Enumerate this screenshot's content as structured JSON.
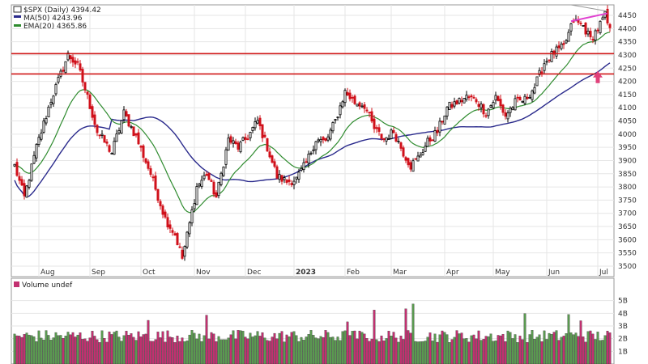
{
  "chart_data": [
    {
      "type": "candlestick",
      "legend": [
        {
          "label": "$SPX (Daily) 4394.42",
          "color": "#000000"
        },
        {
          "label": "MA(50) 4243.96",
          "color": "#2a2a8c"
        },
        {
          "label": "EMA(20) 4365.86",
          "color": "#2e8b2e"
        }
      ],
      "colors": {
        "up": "#000000",
        "down": "#d0101a",
        "ma50": "#2a2a8c",
        "ema20": "#2e8b2e",
        "support": "#d01818",
        "trendline": "#e040d0",
        "arrow": "#e0407a"
      },
      "ylim": [
        3460,
        4490
      ],
      "yticks": [
        3500,
        3550,
        3600,
        3650,
        3700,
        3750,
        3800,
        3850,
        3900,
        3950,
        4000,
        4050,
        4100,
        4150,
        4200,
        4250,
        4300,
        4350,
        4400,
        4450
      ],
      "x_labels": [
        "Aug",
        "Sep",
        "Oct",
        "Nov",
        "Dec",
        "2023",
        "Feb",
        "Mar",
        "Apr",
        "May",
        "Jun",
        "Jul"
      ],
      "anchors": [
        [
          0,
          3880
        ],
        [
          4,
          3760
        ],
        [
          9,
          3950
        ],
        [
          15,
          4130
        ],
        [
          22,
          4300
        ],
        [
          26,
          4260
        ],
        [
          30,
          4140
        ],
        [
          34,
          4010
        ],
        [
          40,
          3930
        ],
        [
          45,
          4080
        ],
        [
          50,
          3990
        ],
        [
          56,
          3850
        ],
        [
          62,
          3680
        ],
        [
          66,
          3620
        ],
        [
          69,
          3530
        ],
        [
          72,
          3660
        ],
        [
          75,
          3800
        ],
        [
          79,
          3850
        ],
        [
          83,
          3760
        ],
        [
          88,
          3980
        ],
        [
          92,
          3950
        ],
        [
          96,
          3990
        ],
        [
          100,
          4050
        ],
        [
          104,
          3950
        ],
        [
          108,
          3840
        ],
        [
          112,
          3820
        ],
        [
          116,
          3830
        ],
        [
          120,
          3890
        ],
        [
          124,
          3980
        ],
        [
          128,
          3970
        ],
        [
          132,
          4050
        ],
        [
          136,
          4160
        ],
        [
          140,
          4120
        ],
        [
          144,
          4110
        ],
        [
          148,
          4020
        ],
        [
          152,
          3980
        ],
        [
          156,
          4010
        ],
        [
          160,
          3930
        ],
        [
          163,
          3880
        ],
        [
          166,
          3910
        ],
        [
          170,
          3970
        ],
        [
          174,
          4010
        ],
        [
          178,
          4100
        ],
        [
          182,
          4120
        ],
        [
          186,
          4140
        ],
        [
          190,
          4130
        ],
        [
          194,
          4080
        ],
        [
          198,
          4140
        ],
        [
          202,
          4070
        ],
        [
          206,
          4120
        ],
        [
          210,
          4130
        ],
        [
          214,
          4180
        ],
        [
          218,
          4270
        ],
        [
          222,
          4310
        ],
        [
          226,
          4330
        ],
        [
          230,
          4430
        ],
        [
          234,
          4410
        ],
        [
          237,
          4360
        ],
        [
          240,
          4400
        ],
        [
          243,
          4450
        ],
        [
          245,
          4390
        ]
      ],
      "horizontal_lines": [
        {
          "price": 4305,
          "label": ""
        },
        {
          "price": 4228,
          "label": ""
        }
      ],
      "volume_panel": {
        "title": "Volume undef",
        "ylim": [
          0,
          6
        ],
        "yticks": [
          {
            "v": 1,
            "label": "1B"
          },
          {
            "v": 2,
            "label": "2B"
          },
          {
            "v": 3,
            "label": "3B"
          },
          {
            "v": 4,
            "label": "4B"
          },
          {
            "v": 5,
            "label": "5B"
          }
        ]
      }
    }
  ]
}
